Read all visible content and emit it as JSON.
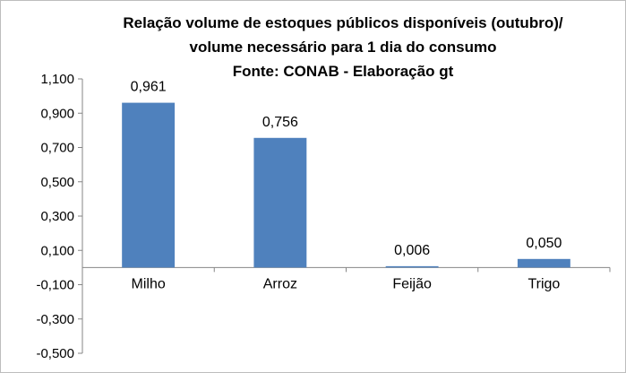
{
  "chart_data": {
    "type": "bar",
    "title_lines": [
      "Relação volume de estoques públicos  disponíveis (outubro)/",
      "volume necessário para 1 dia do consumo",
      "Fonte: CONAB - Elaboração gt"
    ],
    "categories": [
      "Milho",
      "Arroz",
      "Feijão",
      "Trigo"
    ],
    "values": [
      0.961,
      0.756,
      0.006,
      0.05
    ],
    "data_labels": [
      "0,961",
      "0,756",
      "0,006",
      "0,050"
    ],
    "y_ticks": [
      1.1,
      0.9,
      0.7,
      0.5,
      0.3,
      0.1,
      -0.1,
      -0.3,
      -0.5
    ],
    "y_tick_labels": [
      "1,100",
      "0,900",
      "0,700",
      "0,500",
      "0,300",
      "0,100",
      "-0,100",
      "-0,300",
      "-0,500"
    ],
    "ylim": [
      -0.5,
      1.1
    ],
    "xlabel": "",
    "ylabel": "",
    "grid": false,
    "legend": "none",
    "bar_color": "#4f81bd"
  }
}
